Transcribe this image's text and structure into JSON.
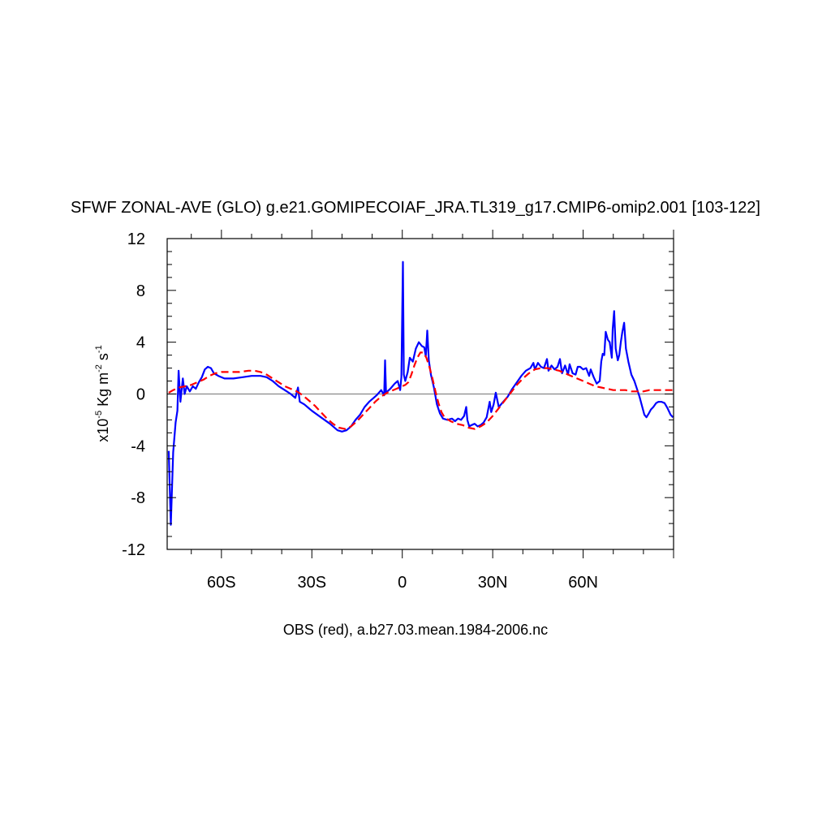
{
  "chart_data": {
    "type": "line",
    "title": "SFWF ZONAL-AVE (GLO) g.e21.GOMIPECOIAF_JRA.TL319_g17.CMIP6-omip2.001 [103-122]",
    "ylabel_prefix": "x10",
    "ylabel_exp": "-5",
    "ylabel_unit1": " Kg m",
    "ylabel_exp2": "-2",
    "ylabel_unit2": " s",
    "ylabel_exp3": "-1",
    "xlabel": "OBS (red), a.b27.03.mean.1984-2006.nc",
    "xlim": [
      -78,
      90
    ],
    "ylim": [
      -12,
      12
    ],
    "xticks": [
      {
        "v": -60,
        "label": "60S"
      },
      {
        "v": -30,
        "label": "30S"
      },
      {
        "v": 0,
        "label": "0"
      },
      {
        "v": 30,
        "label": "30N"
      },
      {
        "v": 60,
        "label": "60N"
      }
    ],
    "yticks": [
      {
        "v": 12,
        "label": "12"
      },
      {
        "v": 8,
        "label": "8"
      },
      {
        "v": 4,
        "label": "4"
      },
      {
        "v": 0,
        "label": "0"
      },
      {
        "v": -4,
        "label": "-4"
      },
      {
        "v": -8,
        "label": "-8"
      },
      {
        "v": -12,
        "label": "-12"
      }
    ],
    "zero_line": true,
    "series": [
      {
        "color": "#0000ff",
        "dash": "solid",
        "points": [
          [
            -77.5,
            -4.4
          ],
          [
            -76.8,
            -10.1
          ],
          [
            -76.0,
            -4.5
          ],
          [
            -75.2,
            -2.2
          ],
          [
            -74.6,
            -1.3
          ],
          [
            -74.2,
            1.8
          ],
          [
            -73.6,
            -0.6
          ],
          [
            -72.8,
            1.2
          ],
          [
            -72.2,
            0.0
          ],
          [
            -71.5,
            0.6
          ],
          [
            -70.5,
            0.2
          ],
          [
            -69.5,
            0.6
          ],
          [
            -68.5,
            0.4
          ],
          [
            -67.5,
            0.9
          ],
          [
            -66.5,
            1.3
          ],
          [
            -65.5,
            1.9
          ],
          [
            -64.5,
            2.1
          ],
          [
            -63.5,
            2.0
          ],
          [
            -62.5,
            1.6
          ],
          [
            -61.0,
            1.4
          ],
          [
            -59.0,
            1.2
          ],
          [
            -56.0,
            1.2
          ],
          [
            -53.0,
            1.3
          ],
          [
            -50.0,
            1.4
          ],
          [
            -47.0,
            1.4
          ],
          [
            -45.0,
            1.3
          ],
          [
            -43.0,
            1.0
          ],
          [
            -41.0,
            0.6
          ],
          [
            -39.0,
            0.3
          ],
          [
            -37.0,
            0.0
          ],
          [
            -35.5,
            -0.3
          ],
          [
            -34.6,
            0.5
          ],
          [
            -34.0,
            -0.6
          ],
          [
            -32.5,
            -0.8
          ],
          [
            -30.0,
            -1.3
          ],
          [
            -27.0,
            -1.8
          ],
          [
            -24.0,
            -2.3
          ],
          [
            -21.5,
            -2.8
          ],
          [
            -20.0,
            -2.9
          ],
          [
            -18.5,
            -2.8
          ],
          [
            -17.0,
            -2.5
          ],
          [
            -15.5,
            -2.0
          ],
          [
            -14.0,
            -1.6
          ],
          [
            -12.5,
            -1.0
          ],
          [
            -11.0,
            -0.6
          ],
          [
            -9.5,
            -0.3
          ],
          [
            -8.5,
            -0.1
          ],
          [
            -7.0,
            0.3
          ],
          [
            -6.0,
            -0.1
          ],
          [
            -5.7,
            2.6
          ],
          [
            -5.4,
            0.1
          ],
          [
            -4.0,
            0.4
          ],
          [
            -2.5,
            0.8
          ],
          [
            -1.5,
            1.0
          ],
          [
            -0.7,
            0.3
          ],
          [
            -0.3,
            1.3
          ],
          [
            0.2,
            10.2
          ],
          [
            0.5,
            1.5
          ],
          [
            1.0,
            1.0
          ],
          [
            1.8,
            1.7
          ],
          [
            2.5,
            2.8
          ],
          [
            3.5,
            2.5
          ],
          [
            4.5,
            3.5
          ],
          [
            5.5,
            4.0
          ],
          [
            6.5,
            3.7
          ],
          [
            7.3,
            3.6
          ],
          [
            7.8,
            2.9
          ],
          [
            8.3,
            4.9
          ],
          [
            8.8,
            2.6
          ],
          [
            9.5,
            1.5
          ],
          [
            10.5,
            0.5
          ],
          [
            11.5,
            -0.8
          ],
          [
            12.5,
            -1.5
          ],
          [
            13.5,
            -1.9
          ],
          [
            15.0,
            -2.0
          ],
          [
            16.5,
            -1.9
          ],
          [
            17.5,
            -2.1
          ],
          [
            18.5,
            -1.9
          ],
          [
            19.5,
            -2.0
          ],
          [
            20.5,
            -1.7
          ],
          [
            21.2,
            -1.0
          ],
          [
            21.6,
            -2.0
          ],
          [
            22.2,
            -2.5
          ],
          [
            23.0,
            -2.4
          ],
          [
            24.0,
            -2.3
          ],
          [
            25.0,
            -2.5
          ],
          [
            26.0,
            -2.4
          ],
          [
            27.0,
            -2.2
          ],
          [
            28.0,
            -1.8
          ],
          [
            29.0,
            -0.6
          ],
          [
            29.5,
            -1.4
          ],
          [
            30.3,
            -0.8
          ],
          [
            31.0,
            0.1
          ],
          [
            32.0,
            -1.0
          ],
          [
            33.5,
            -0.6
          ],
          [
            35.0,
            -0.2
          ],
          [
            36.5,
            0.4
          ],
          [
            38.0,
            0.9
          ],
          [
            39.5,
            1.4
          ],
          [
            41.0,
            1.8
          ],
          [
            42.5,
            2.0
          ],
          [
            43.5,
            2.4
          ],
          [
            44.0,
            1.9
          ],
          [
            45.0,
            2.4
          ],
          [
            46.0,
            2.1
          ],
          [
            47.0,
            2.0
          ],
          [
            48.0,
            2.7
          ],
          [
            48.5,
            1.8
          ],
          [
            49.5,
            2.2
          ],
          [
            50.5,
            1.9
          ],
          [
            51.5,
            2.1
          ],
          [
            52.3,
            2.7
          ],
          [
            53.0,
            1.6
          ],
          [
            54.0,
            2.2
          ],
          [
            55.0,
            1.5
          ],
          [
            55.5,
            2.3
          ],
          [
            56.5,
            1.6
          ],
          [
            57.5,
            1.5
          ],
          [
            58.2,
            2.1
          ],
          [
            59.0,
            2.1
          ],
          [
            60.0,
            1.9
          ],
          [
            61.0,
            2.0
          ],
          [
            62.0,
            1.4
          ],
          [
            62.5,
            1.9
          ],
          [
            63.5,
            1.3
          ],
          [
            64.5,
            0.8
          ],
          [
            65.5,
            1.0
          ],
          [
            66.0,
            2.5
          ],
          [
            66.5,
            3.1
          ],
          [
            67.0,
            3.0
          ],
          [
            67.5,
            4.8
          ],
          [
            68.2,
            4.2
          ],
          [
            68.8,
            4.0
          ],
          [
            69.5,
            2.8
          ],
          [
            69.8,
            5.0
          ],
          [
            70.3,
            6.4
          ],
          [
            70.8,
            3.5
          ],
          [
            71.5,
            2.6
          ],
          [
            72.0,
            3.0
          ],
          [
            72.5,
            4.0
          ],
          [
            73.0,
            4.8
          ],
          [
            73.6,
            5.5
          ],
          [
            74.2,
            3.5
          ],
          [
            75.0,
            2.5
          ],
          [
            76.0,
            1.5
          ],
          [
            77.0,
            1.0
          ],
          [
            78.0,
            0.3
          ],
          [
            78.7,
            -0.2
          ],
          [
            79.5,
            -0.9
          ],
          [
            80.3,
            -1.6
          ],
          [
            81.0,
            -1.8
          ],
          [
            81.8,
            -1.5
          ],
          [
            82.5,
            -1.2
          ],
          [
            83.3,
            -1.0
          ],
          [
            84.2,
            -0.7
          ],
          [
            85.0,
            -0.6
          ],
          [
            86.0,
            -0.6
          ],
          [
            87.0,
            -0.7
          ],
          [
            88.0,
            -1.1
          ],
          [
            89.0,
            -1.6
          ],
          [
            89.8,
            -1.8
          ]
        ]
      },
      {
        "color": "#ff0000",
        "dash": "dashed",
        "points": [
          [
            -77.5,
            0.1
          ],
          [
            -76.0,
            0.3
          ],
          [
            -74.0,
            0.5
          ],
          [
            -72.0,
            0.6
          ],
          [
            -70.0,
            0.7
          ],
          [
            -68.0,
            0.9
          ],
          [
            -66.0,
            1.1
          ],
          [
            -64.0,
            1.4
          ],
          [
            -62.0,
            1.6
          ],
          [
            -60.0,
            1.7
          ],
          [
            -57.0,
            1.7
          ],
          [
            -54.0,
            1.7
          ],
          [
            -51.0,
            1.8
          ],
          [
            -49.0,
            1.8
          ],
          [
            -47.0,
            1.7
          ],
          [
            -45.0,
            1.5
          ],
          [
            -43.0,
            1.2
          ],
          [
            -41.0,
            0.9
          ],
          [
            -39.0,
            0.6
          ],
          [
            -37.0,
            0.4
          ],
          [
            -35.0,
            0.2
          ],
          [
            -33.0,
            -0.1
          ],
          [
            -31.0,
            -0.5
          ],
          [
            -29.0,
            -0.9
          ],
          [
            -27.0,
            -1.4
          ],
          [
            -25.0,
            -1.9
          ],
          [
            -23.0,
            -2.3
          ],
          [
            -21.0,
            -2.6
          ],
          [
            -19.0,
            -2.7
          ],
          [
            -17.0,
            -2.5
          ],
          [
            -15.0,
            -2.1
          ],
          [
            -13.0,
            -1.6
          ],
          [
            -11.0,
            -1.1
          ],
          [
            -9.0,
            -0.6
          ],
          [
            -7.0,
            -0.2
          ],
          [
            -5.0,
            0.1
          ],
          [
            -3.0,
            0.3
          ],
          [
            -1.0,
            0.5
          ],
          [
            1.0,
            0.7
          ],
          [
            2.0,
            0.9
          ],
          [
            3.0,
            1.5
          ],
          [
            4.0,
            2.2
          ],
          [
            5.0,
            2.8
          ],
          [
            6.0,
            3.2
          ],
          [
            7.0,
            3.2
          ],
          [
            8.0,
            2.8
          ],
          [
            9.0,
            2.1
          ],
          [
            10.0,
            1.2
          ],
          [
            11.0,
            0.2
          ],
          [
            12.0,
            -0.7
          ],
          [
            13.0,
            -1.4
          ],
          [
            14.0,
            -1.8
          ],
          [
            16.0,
            -2.1
          ],
          [
            18.0,
            -2.3
          ],
          [
            20.0,
            -2.4
          ],
          [
            22.0,
            -2.6
          ],
          [
            24.0,
            -2.7
          ],
          [
            26.0,
            -2.5
          ],
          [
            28.0,
            -2.2
          ],
          [
            30.0,
            -1.7
          ],
          [
            32.0,
            -1.1
          ],
          [
            34.0,
            -0.5
          ],
          [
            36.0,
            0.1
          ],
          [
            38.0,
            0.7
          ],
          [
            40.0,
            1.2
          ],
          [
            42.0,
            1.6
          ],
          [
            44.0,
            1.9
          ],
          [
            46.0,
            2.0
          ],
          [
            48.0,
            2.0
          ],
          [
            50.0,
            1.9
          ],
          [
            52.0,
            1.8
          ],
          [
            54.0,
            1.6
          ],
          [
            56.0,
            1.4
          ],
          [
            58.0,
            1.2
          ],
          [
            60.0,
            1.0
          ],
          [
            62.0,
            0.8
          ],
          [
            64.0,
            0.6
          ],
          [
            66.0,
            0.5
          ],
          [
            68.0,
            0.4
          ],
          [
            70.0,
            0.3
          ],
          [
            72.0,
            0.3
          ],
          [
            74.0,
            0.3
          ],
          [
            76.0,
            0.2
          ],
          [
            78.0,
            0.2
          ],
          [
            80.0,
            0.2
          ],
          [
            82.0,
            0.3
          ],
          [
            84.0,
            0.3
          ],
          [
            86.0,
            0.3
          ],
          [
            88.0,
            0.3
          ],
          [
            90.0,
            0.3
          ]
        ]
      }
    ]
  }
}
